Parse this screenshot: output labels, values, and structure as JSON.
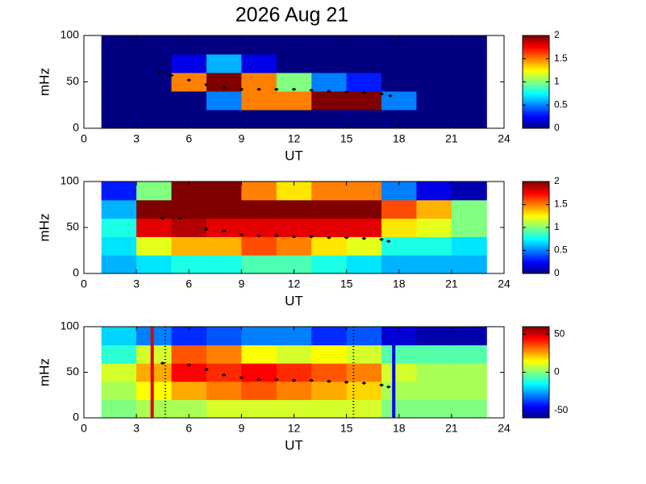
{
  "chart_data": [
    {
      "type": "heatmap",
      "title": "2026 Aug 21",
      "xlabel": "UT",
      "ylabel": "mHz",
      "xlim": [
        0,
        24
      ],
      "xticks": [
        0,
        3,
        6,
        9,
        12,
        15,
        18,
        21,
        24
      ],
      "ylim": [
        0,
        100
      ],
      "yticks": [
        0,
        50,
        100
      ],
      "x_bins": [
        1,
        3,
        5,
        7,
        9,
        11,
        13,
        15,
        17,
        19,
        21,
        23
      ],
      "y_bins": [
        0,
        20,
        40,
        60,
        80,
        100
      ],
      "z": [
        [
          0,
          0,
          0,
          0,
          0,
          0,
          0,
          0,
          0,
          0,
          0
        ],
        [
          0,
          0,
          0,
          0.5,
          1.5,
          1.5,
          2,
          2,
          0.5,
          0,
          0
        ],
        [
          0,
          0,
          1.5,
          2,
          1.5,
          1,
          0.5,
          0.3,
          0,
          0,
          0
        ],
        [
          0,
          0,
          0.2,
          0.6,
          0.2,
          0,
          0,
          0,
          0,
          0,
          0
        ],
        [
          0,
          0,
          0,
          0,
          0,
          0,
          0,
          0,
          0,
          0,
          0
        ]
      ],
      "clim": [
        0,
        2
      ],
      "cticks": [
        0,
        0.5,
        1,
        1.5,
        2
      ],
      "ridge": {
        "color": "#000000",
        "x": [
          4.3,
          5,
          6,
          7,
          8,
          9,
          10,
          11,
          12,
          13,
          14,
          15,
          16,
          17,
          17.5
        ],
        "y": [
          59,
          57,
          52,
          47,
          44,
          42,
          42,
          42,
          42,
          41,
          40,
          39,
          38,
          37,
          35
        ]
      },
      "vlines": []
    },
    {
      "type": "heatmap",
      "xlabel": "UT",
      "ylabel": "mHz",
      "xlim": [
        0,
        24
      ],
      "xticks": [
        0,
        3,
        6,
        9,
        12,
        15,
        18,
        21,
        24
      ],
      "ylim": [
        0,
        100
      ],
      "yticks": [
        0,
        50,
        100
      ],
      "x_bins": [
        1,
        3,
        5,
        7,
        9,
        11,
        13,
        15,
        17,
        19,
        21,
        23
      ],
      "y_bins": [
        0,
        20,
        40,
        60,
        80,
        100
      ],
      "z": [
        [
          0.6,
          0.7,
          0.8,
          0.8,
          0.9,
          0.9,
          0.8,
          0.7,
          0.6,
          0.6,
          0.6
        ],
        [
          0.7,
          1.2,
          1.4,
          1.4,
          1.6,
          1.5,
          1.3,
          1.2,
          0.8,
          0.8,
          0.7
        ],
        [
          0.8,
          1.8,
          1.9,
          1.8,
          1.8,
          1.8,
          1.8,
          1.8,
          1.3,
          1.2,
          1.0
        ],
        [
          0.6,
          2,
          2,
          2,
          2,
          2,
          2,
          2,
          1.6,
          1.4,
          1.0
        ],
        [
          0.3,
          1.0,
          2,
          2,
          1.5,
          1.3,
          1.5,
          1.5,
          0.5,
          0.2,
          0.1
        ]
      ],
      "clim": [
        0,
        2
      ],
      "cticks": [
        0,
        0.5,
        1,
        1.5,
        2
      ],
      "ridge": {
        "color": "#000000",
        "x": [
          4.5,
          5.5,
          7,
          8,
          9,
          10,
          11,
          12,
          13,
          14,
          15,
          16,
          17,
          17.4
        ],
        "y": [
          60,
          60,
          48,
          46,
          42,
          41,
          41,
          40,
          40,
          39,
          39,
          38,
          37,
          35
        ]
      },
      "vlines": []
    },
    {
      "type": "heatmap",
      "xlabel": "UT",
      "ylabel": "mHz",
      "xlim": [
        0,
        24
      ],
      "xticks": [
        0,
        3,
        6,
        9,
        12,
        15,
        18,
        21,
        24
      ],
      "ylim": [
        0,
        100
      ],
      "yticks": [
        0,
        50,
        100
      ],
      "x_bins": [
        1,
        3,
        5,
        7,
        9,
        11,
        13,
        15,
        17,
        19,
        21,
        23
      ],
      "y_bins": [
        0,
        20,
        40,
        60,
        80,
        100
      ],
      "z": [
        [
          0,
          5,
          5,
          10,
          10,
          10,
          10,
          10,
          0,
          0,
          0
        ],
        [
          5,
          15,
          25,
          30,
          35,
          30,
          25,
          20,
          5,
          5,
          5
        ],
        [
          10,
          25,
          45,
          40,
          45,
          40,
          35,
          30,
          10,
          5,
          5
        ],
        [
          -10,
          10,
          35,
          30,
          15,
          10,
          15,
          10,
          -5,
          -5,
          -5
        ],
        [
          -20,
          -30,
          -40,
          -35,
          -30,
          -30,
          -40,
          -35,
          -50,
          -55,
          -55
        ]
      ],
      "clim": [
        -60,
        60
      ],
      "cticks": [
        -50,
        0,
        50
      ],
      "ridge": {
        "color": "#000000",
        "x": [
          4.5,
          6,
          7,
          8,
          9,
          10,
          11,
          12,
          13,
          14,
          15,
          16,
          17,
          17.4
        ],
        "y": [
          60,
          58,
          53,
          47,
          44,
          42,
          42,
          41,
          41,
          40,
          39,
          38,
          36,
          34
        ]
      },
      "vlines": [
        {
          "x": 3.9,
          "color": "#e00000",
          "style": "solid"
        },
        {
          "x": 17.7,
          "color": "#0000e0",
          "style": "solid"
        },
        {
          "x": 4.65,
          "color": "#000000",
          "style": "dotted"
        },
        {
          "x": 15.4,
          "color": "#000000",
          "style": "dotted"
        }
      ]
    }
  ]
}
